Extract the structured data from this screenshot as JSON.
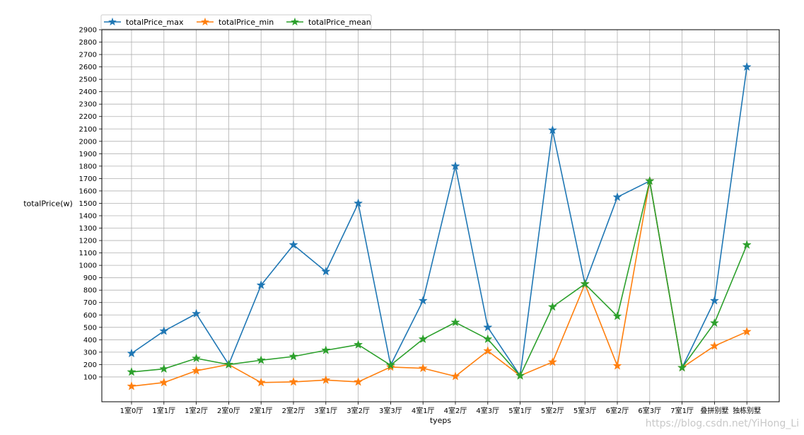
{
  "chart_data": {
    "type": "line",
    "title": "",
    "xlabel": "tyeps",
    "ylabel": "totalPrice(w)",
    "ylim": [
      -100,
      2900
    ],
    "yticks": [
      100,
      200,
      300,
      400,
      500,
      600,
      700,
      800,
      900,
      1000,
      1100,
      1200,
      1300,
      1400,
      1500,
      1600,
      1700,
      1800,
      1900,
      2000,
      2100,
      2200,
      2300,
      2400,
      2500,
      2600,
      2700,
      2800,
      2900
    ],
    "grid": true,
    "legend_position": "top-left",
    "marker": "star",
    "categories": [
      "1室0厅",
      "1室1厅",
      "1室2厅",
      "2室0厅",
      "2室1厅",
      "2室2厅",
      "3室1厅",
      "3室2厅",
      "3室3厅",
      "4室1厅",
      "4室2厅",
      "4室3厅",
      "5室1厅",
      "5室2厅",
      "5室3厅",
      "6室2厅",
      "6室3厅",
      "7室1厅",
      "叠拼别墅",
      "独栋别墅"
    ],
    "series": [
      {
        "name": "totalPrice_max",
        "color": "#1f77b4",
        "values": [
          290,
          470,
          610,
          200,
          840,
          1165,
          950,
          1500,
          195,
          715,
          1800,
          500,
          110,
          2090,
          850,
          1550,
          1680,
          175,
          715,
          2600
        ]
      },
      {
        "name": "totalPrice_min",
        "color": "#ff7f0e",
        "values": [
          25,
          55,
          150,
          200,
          55,
          60,
          75,
          60,
          180,
          170,
          105,
          310,
          110,
          220,
          850,
          190,
          1680,
          175,
          350,
          465
        ]
      },
      {
        "name": "totalPrice_mean",
        "color": "#2ca02c",
        "values": [
          140,
          165,
          250,
          200,
          235,
          265,
          315,
          360,
          195,
          405,
          540,
          405,
          110,
          665,
          850,
          590,
          1680,
          175,
          535,
          1165
        ]
      }
    ]
  },
  "watermark": "https://blog.csdn.net/YiHong_Li"
}
